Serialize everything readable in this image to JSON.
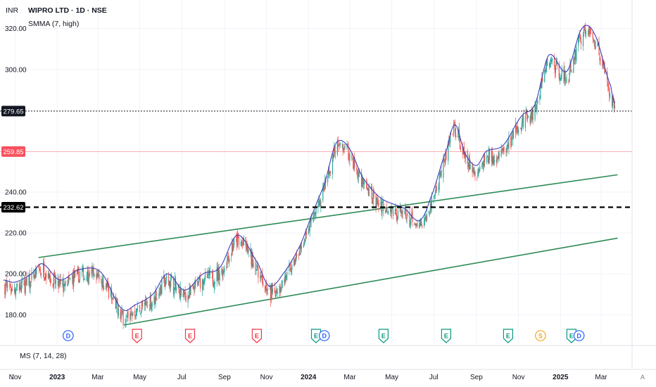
{
  "header": {
    "currency": "INR",
    "symbol_line": "WIPRO LTD · 1D · NSE",
    "indicator_line": "SMMA (7, high)"
  },
  "lower_pane": {
    "label": "MS (7, 14, 28)"
  },
  "time_axis": {
    "left_button": "Z",
    "right_button": "A"
  },
  "chart_data": {
    "type": "candlestick",
    "x_ticks": [
      {
        "label": "Nov",
        "date": "2022-11-01",
        "bold": false
      },
      {
        "label": "2023",
        "date": "2023-01-01",
        "bold": true
      },
      {
        "label": "Mar",
        "date": "2023-03-01",
        "bold": false
      },
      {
        "label": "May",
        "date": "2023-05-01",
        "bold": false
      },
      {
        "label": "Jul",
        "date": "2023-07-01",
        "bold": false
      },
      {
        "label": "Sep",
        "date": "2023-09-01",
        "bold": false
      },
      {
        "label": "Nov",
        "date": "2023-11-01",
        "bold": false
      },
      {
        "label": "2024",
        "date": "2024-01-01",
        "bold": true
      },
      {
        "label": "Mar",
        "date": "2024-03-01",
        "bold": false
      },
      {
        "label": "May",
        "date": "2024-05-01",
        "bold": false
      },
      {
        "label": "Jul",
        "date": "2024-07-01",
        "bold": false
      },
      {
        "label": "Sep",
        "date": "2024-09-01",
        "bold": false
      },
      {
        "label": "Nov",
        "date": "2024-11-01",
        "bold": false
      },
      {
        "label": "2025",
        "date": "2025-01-01",
        "bold": true
      },
      {
        "label": "Mar",
        "date": "2025-03-01",
        "bold": false
      }
    ],
    "y_ticks": [
      "180.00",
      "200.00",
      "220.00",
      "240.00",
      "300.00",
      "320.00"
    ],
    "y_range": [
      166,
      334
    ],
    "x_range": [
      "2022-10-10",
      "2025-04-15"
    ],
    "price_levels": [
      {
        "label": "279.65",
        "value": 279.65,
        "style": "dotted",
        "color": "#131722"
      },
      {
        "label": "259.85",
        "value": 259.85,
        "style": "solid",
        "color": "#f7525f"
      },
      {
        "label": "232.62",
        "value": 232.62,
        "style": "dashed",
        "color": "#000000"
      }
    ],
    "trendlines": [
      {
        "x1": "2022-12-05",
        "y1": 208,
        "x2": "2025-03-25",
        "y2": 248.5
      },
      {
        "x1": "2023-04-08",
        "y1": 175,
        "x2": "2025-03-25",
        "y2": 217.5
      }
    ],
    "smma_anchors": [
      [
        "2022-10-15",
        197
      ],
      [
        "2022-11-01",
        196
      ],
      [
        "2022-11-25",
        200
      ],
      [
        "2022-12-10",
        205
      ],
      [
        "2023-01-05",
        197
      ],
      [
        "2023-02-01",
        202
      ],
      [
        "2023-03-05",
        201
      ],
      [
        "2023-04-05",
        183
      ],
      [
        "2023-04-25",
        185
      ],
      [
        "2023-05-20",
        190
      ],
      [
        "2023-06-10",
        200
      ],
      [
        "2023-07-05",
        192
      ],
      [
        "2023-08-01",
        200
      ],
      [
        "2023-08-25",
        203
      ],
      [
        "2023-09-20",
        219
      ],
      [
        "2023-10-20",
        205
      ],
      [
        "2023-11-05",
        194
      ],
      [
        "2023-11-25",
        200
      ],
      [
        "2023-12-20",
        214
      ],
      [
        "2024-01-10",
        232
      ],
      [
        "2024-01-25",
        245
      ],
      [
        "2024-02-10",
        264
      ],
      [
        "2024-02-28",
        262
      ],
      [
        "2024-03-20",
        247
      ],
      [
        "2024-04-15",
        237
      ],
      [
        "2024-05-20",
        232
      ],
      [
        "2024-06-10",
        226
      ],
      [
        "2024-06-25",
        236
      ],
      [
        "2024-07-20",
        261
      ],
      [
        "2024-08-01",
        273
      ],
      [
        "2024-08-15",
        259
      ],
      [
        "2024-09-01",
        253
      ],
      [
        "2024-09-15",
        260
      ],
      [
        "2024-10-10",
        263
      ],
      [
        "2024-11-05",
        277
      ],
      [
        "2024-11-25",
        283
      ],
      [
        "2024-12-15",
        307
      ],
      [
        "2025-01-10",
        299
      ],
      [
        "2025-02-01",
        320
      ],
      [
        "2025-02-20",
        317
      ],
      [
        "2025-03-15",
        292
      ],
      [
        "2025-03-22",
        283
      ]
    ],
    "event_markers": [
      {
        "label": "D",
        "date": "2023-01-17",
        "kind": "dividend",
        "color": "#2962ff"
      },
      {
        "label": "E",
        "date": "2023-04-27",
        "kind": "earnings",
        "color": "#f23645"
      },
      {
        "label": "E",
        "date": "2023-07-13",
        "kind": "earnings",
        "color": "#f23645"
      },
      {
        "label": "E",
        "date": "2023-10-18",
        "kind": "earnings",
        "color": "#f23645"
      },
      {
        "label": "E",
        "date": "2024-01-12",
        "kind": "earnings",
        "color": "#089981"
      },
      {
        "label": "D",
        "date": "2024-01-24",
        "kind": "dividend",
        "color": "#2962ff"
      },
      {
        "label": "E",
        "date": "2024-04-19",
        "kind": "earnings",
        "color": "#089981"
      },
      {
        "label": "E",
        "date": "2024-07-19",
        "kind": "earnings",
        "color": "#089981"
      },
      {
        "label": "E",
        "date": "2024-10-17",
        "kind": "earnings",
        "color": "#089981"
      },
      {
        "label": "S",
        "date": "2024-12-03",
        "kind": "split",
        "color": "#f5a623"
      },
      {
        "label": "E",
        "date": "2025-01-17",
        "kind": "earnings",
        "color": "#089981"
      },
      {
        "label": "D",
        "date": "2025-01-28",
        "kind": "dividend",
        "color": "#2962ff"
      }
    ],
    "colors": {
      "up": "#26a69a",
      "down": "#ef5350",
      "smma": "#3f3fb8",
      "trendline": "#2e8b57",
      "grid": "#f0f3fa",
      "axis_text": "#131722"
    }
  }
}
